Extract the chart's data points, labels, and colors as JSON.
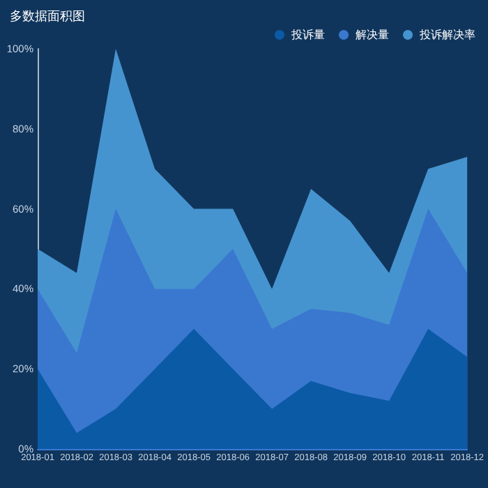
{
  "chart_data": {
    "type": "area",
    "title": "多数据面积图",
    "categories": [
      "2018-01",
      "2018-02",
      "2018-03",
      "2018-04",
      "2018-05",
      "2018-06",
      "2018-07",
      "2018-08",
      "2018-09",
      "2018-10",
      "2018-11",
      "2018-12"
    ],
    "series": [
      {
        "name": "投诉量",
        "color": "#0b5aa6",
        "values": [
          20,
          4,
          10,
          20,
          30,
          20,
          10,
          17,
          14,
          12,
          30,
          23
        ]
      },
      {
        "name": "解决量",
        "color": "#3a78d0",
        "values": [
          40,
          24,
          60,
          40,
          40,
          50,
          30,
          35,
          34,
          31,
          60,
          44
        ]
      },
      {
        "name": "投诉解决率",
        "color": "#4694cf",
        "values": [
          50,
          44,
          100,
          70,
          60,
          60,
          40,
          65,
          57,
          44,
          70,
          73
        ]
      }
    ],
    "ylim": [
      0,
      100
    ],
    "yticks": [
      {
        "value": 0,
        "label": "0%"
      },
      {
        "value": 20,
        "label": "20%"
      },
      {
        "value": 40,
        "label": "40%"
      },
      {
        "value": 60,
        "label": "60%"
      },
      {
        "value": 80,
        "label": "80%"
      },
      {
        "value": 100,
        "label": "100%"
      }
    ],
    "grid": false,
    "legend": "top right"
  }
}
